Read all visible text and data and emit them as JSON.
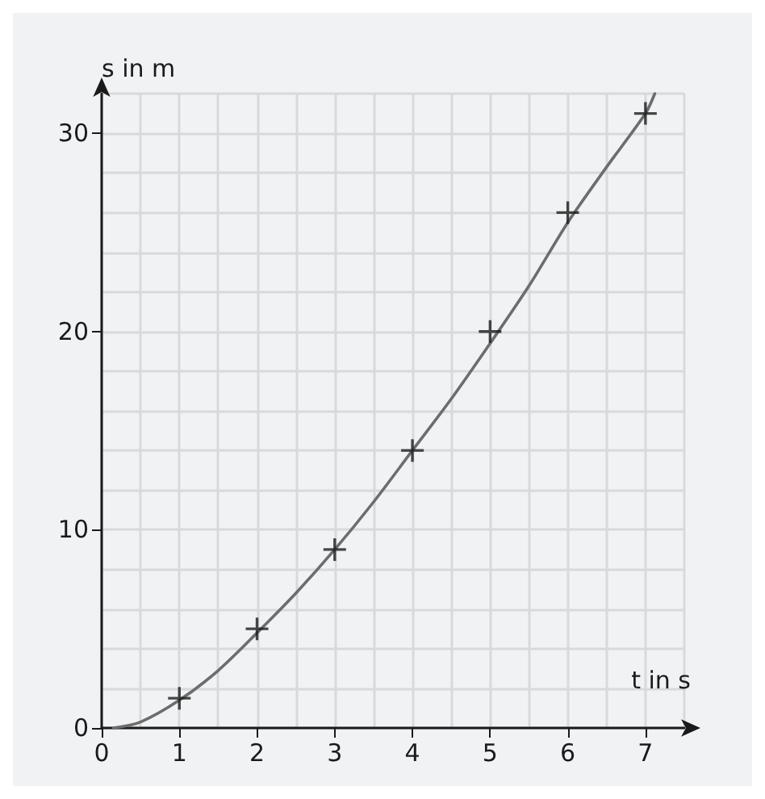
{
  "chart_data": {
    "type": "scatter",
    "xlabel": "t in s",
    "ylabel": "s in m",
    "xlim": [
      0,
      7.5
    ],
    "ylim": [
      0,
      32
    ],
    "xticks": [
      0,
      {
        "value": 0.5,
        "label": null
      },
      1,
      {
        "value": 1.5,
        "label": null
      },
      2,
      {
        "value": 2.5,
        "label": null
      },
      3,
      {
        "value": 3.5,
        "label": null
      },
      4,
      {
        "value": 4.5,
        "label": null
      },
      5,
      {
        "value": 5.5,
        "label": null
      },
      6,
      {
        "value": 6.5,
        "label": null
      },
      7,
      {
        "value": 7.5,
        "label": null
      }
    ],
    "yticks": [
      0,
      {
        "value": 2,
        "label": null
      },
      {
        "value": 4,
        "label": null
      },
      {
        "value": 6,
        "label": null
      },
      {
        "value": 8,
        "label": null
      },
      10,
      {
        "value": 12,
        "label": null
      },
      {
        "value": 14,
        "label": null
      },
      {
        "value": 16,
        "label": null
      },
      {
        "value": 18,
        "label": null
      },
      20,
      {
        "value": 22,
        "label": null
      },
      {
        "value": 24,
        "label": null
      },
      {
        "value": 26,
        "label": null
      },
      {
        "value": 28,
        "label": null
      },
      30,
      {
        "value": 32,
        "label": null
      }
    ],
    "grid": true,
    "series": [
      {
        "marker": "cross",
        "color": "#1a1a1a",
        "x": [
          1,
          2,
          3,
          4,
          5,
          6,
          7
        ],
        "values": [
          1.5,
          5,
          9,
          14,
          20,
          26,
          31
        ]
      },
      {
        "type": "line",
        "marker": "none",
        "color": "#6d6d6d",
        "line_style": "solid",
        "x": [
          0.15,
          0.5,
          1,
          1.5,
          2,
          2.5,
          3,
          3.5,
          4,
          4.5,
          5,
          5.5,
          6,
          6.5,
          7,
          7.12
        ],
        "values": [
          0,
          0.3,
          1.4,
          2.9,
          4.8,
          6.8,
          9,
          11.4,
          14,
          16.6,
          19.4,
          22.3,
          25.5,
          28.3,
          31,
          32
        ]
      }
    ]
  }
}
